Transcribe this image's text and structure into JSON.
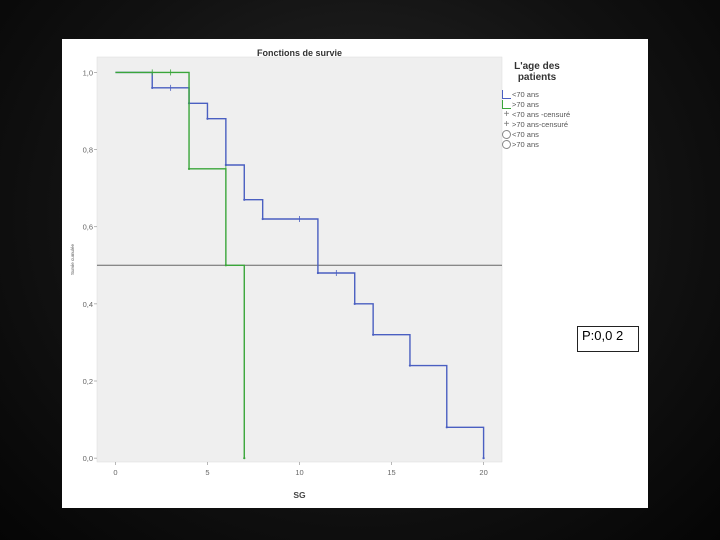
{
  "chart_data": {
    "type": "line",
    "title": "Fonctions de survie",
    "xlabel": "SG",
    "ylabel": "Survie cumulée",
    "xlim": [
      -1,
      21
    ],
    "ylim": [
      -0.01,
      1.04
    ],
    "xticks": [
      "0",
      "5",
      "10",
      "15",
      "20"
    ],
    "xtick_values": [
      0,
      5,
      10,
      15,
      20
    ],
    "yticks": [
      "0,0",
      "0,2",
      "0,4",
      "0,6",
      "0,8",
      "1,0"
    ],
    "ytick_values": [
      0.0,
      0.2,
      0.4,
      0.6,
      0.8,
      1.0
    ],
    "reference_line": 0.5,
    "legend_title": "L'age des patients",
    "legend_items": [
      {
        "symbol": "line-blue",
        "label": "<70 ans"
      },
      {
        "symbol": "line-green",
        "label": ">70 ans"
      },
      {
        "symbol": "plus",
        "label": "<70 ans -censuré"
      },
      {
        "symbol": "plus",
        "label": ">70 ans-censuré"
      },
      {
        "symbol": "circle",
        "label": "<70 ans"
      },
      {
        "symbol": "circle",
        "label": ">70 ans"
      }
    ],
    "series": [
      {
        "name": "<70 ans",
        "color": "#4a5fc1",
        "steps": [
          [
            2,
            0.96
          ],
          [
            4,
            0.92
          ],
          [
            5,
            0.88
          ],
          [
            6,
            0.76
          ],
          [
            7,
            0.67
          ],
          [
            8,
            0.62
          ],
          [
            11,
            0.48
          ],
          [
            13,
            0.4
          ],
          [
            14,
            0.32
          ],
          [
            16,
            0.24
          ],
          [
            18,
            0.08
          ],
          [
            20,
            0.0
          ]
        ],
        "censored": [
          [
            3,
            0.96
          ],
          [
            10,
            0.62
          ],
          [
            12,
            0.48
          ]
        ]
      },
      {
        "name": ">70 ans",
        "color": "#3aa63a",
        "steps": [
          [
            4,
            0.75
          ],
          [
            6,
            0.5
          ],
          [
            7,
            0.0
          ]
        ],
        "censored": [
          [
            2,
            1.0
          ],
          [
            3,
            1.0
          ],
          [
            6,
            0.75
          ]
        ]
      }
    ]
  },
  "annotation": {
    "pvalue_text": "P:0,0 2"
  }
}
